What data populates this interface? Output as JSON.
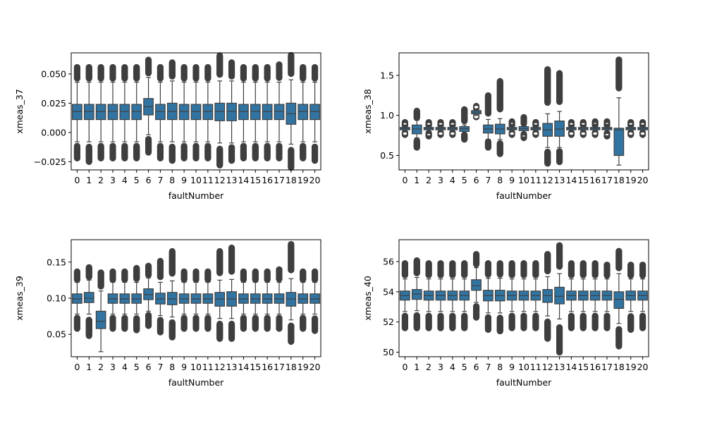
{
  "chart_data": [
    {
      "type": "box",
      "xlabel": "faultNumber",
      "ylabel": "xmeas_37",
      "categories": [
        "0",
        "1",
        "2",
        "3",
        "4",
        "5",
        "6",
        "7",
        "8",
        "9",
        "10",
        "11",
        "12",
        "13",
        "14",
        "15",
        "16",
        "17",
        "18",
        "19",
        "20"
      ],
      "ylim": [
        -0.032,
        0.068
      ],
      "yticks": [
        -0.025,
        0.0,
        0.025,
        0.05
      ],
      "ytick_labels": [
        "−0.025",
        "0.000",
        "0.025",
        "0.050"
      ],
      "box_color": "#3274a1",
      "boxes": [
        {
          "q1": 0.011,
          "median": 0.018,
          "q3": 0.024,
          "wlo": -0.008,
          "whi": 0.043,
          "flo": -0.022,
          "fhi": 0.056
        },
        {
          "q1": 0.011,
          "median": 0.018,
          "q3": 0.024,
          "wlo": -0.008,
          "whi": 0.043,
          "flo": -0.025,
          "fhi": 0.056
        },
        {
          "q1": 0.011,
          "median": 0.018,
          "q3": 0.024,
          "wlo": -0.008,
          "whi": 0.043,
          "flo": -0.022,
          "fhi": 0.056
        },
        {
          "q1": 0.011,
          "median": 0.018,
          "q3": 0.024,
          "wlo": -0.008,
          "whi": 0.043,
          "flo": -0.022,
          "fhi": 0.056
        },
        {
          "q1": 0.011,
          "median": 0.018,
          "q3": 0.024,
          "wlo": -0.008,
          "whi": 0.043,
          "flo": -0.022,
          "fhi": 0.056
        },
        {
          "q1": 0.011,
          "median": 0.018,
          "q3": 0.024,
          "wlo": -0.008,
          "whi": 0.043,
          "flo": -0.022,
          "fhi": 0.056
        },
        {
          "q1": 0.015,
          "median": 0.022,
          "q3": 0.029,
          "wlo": -0.002,
          "whi": 0.047,
          "flo": -0.017,
          "fhi": 0.062
        },
        {
          "q1": 0.011,
          "median": 0.018,
          "q3": 0.024,
          "wlo": -0.008,
          "whi": 0.043,
          "flo": -0.022,
          "fhi": 0.056
        },
        {
          "q1": 0.011,
          "median": 0.018,
          "q3": 0.025,
          "wlo": -0.008,
          "whi": 0.044,
          "flo": -0.024,
          "fhi": 0.06
        },
        {
          "q1": 0.011,
          "median": 0.018,
          "q3": 0.024,
          "wlo": -0.008,
          "whi": 0.043,
          "flo": -0.022,
          "fhi": 0.056
        },
        {
          "q1": 0.011,
          "median": 0.018,
          "q3": 0.024,
          "wlo": -0.008,
          "whi": 0.043,
          "flo": -0.022,
          "fhi": 0.056
        },
        {
          "q1": 0.011,
          "median": 0.018,
          "q3": 0.024,
          "wlo": -0.008,
          "whi": 0.043,
          "flo": -0.022,
          "fhi": 0.056
        },
        {
          "q1": 0.01,
          "median": 0.018,
          "q3": 0.025,
          "wlo": -0.009,
          "whi": 0.044,
          "flo": -0.028,
          "fhi": 0.066
        },
        {
          "q1": 0.01,
          "median": 0.018,
          "q3": 0.025,
          "wlo": -0.009,
          "whi": 0.044,
          "flo": -0.024,
          "fhi": 0.06
        },
        {
          "q1": 0.011,
          "median": 0.018,
          "q3": 0.024,
          "wlo": -0.008,
          "whi": 0.043,
          "flo": -0.022,
          "fhi": 0.056
        },
        {
          "q1": 0.011,
          "median": 0.018,
          "q3": 0.024,
          "wlo": -0.008,
          "whi": 0.043,
          "flo": -0.022,
          "fhi": 0.056
        },
        {
          "q1": 0.011,
          "median": 0.018,
          "q3": 0.024,
          "wlo": -0.008,
          "whi": 0.043,
          "flo": -0.022,
          "fhi": 0.056
        },
        {
          "q1": 0.011,
          "median": 0.018,
          "q3": 0.024,
          "wlo": -0.008,
          "whi": 0.043,
          "flo": -0.022,
          "fhi": 0.058
        },
        {
          "q1": 0.007,
          "median": 0.016,
          "q3": 0.025,
          "wlo": -0.01,
          "whi": 0.045,
          "flo": -0.03,
          "fhi": 0.066
        },
        {
          "q1": 0.011,
          "median": 0.018,
          "q3": 0.024,
          "wlo": -0.008,
          "whi": 0.043,
          "flo": -0.022,
          "fhi": 0.056
        },
        {
          "q1": 0.011,
          "median": 0.018,
          "q3": 0.024,
          "wlo": -0.008,
          "whi": 0.043,
          "flo": -0.024,
          "fhi": 0.056
        }
      ]
    },
    {
      "type": "box",
      "xlabel": "faultNumber",
      "ylabel": "xmeas_38",
      "categories": [
        "0",
        "1",
        "2",
        "3",
        "4",
        "5",
        "6",
        "7",
        "8",
        "9",
        "10",
        "11",
        "12",
        "13",
        "14",
        "15",
        "16",
        "17",
        "18",
        "19",
        "20"
      ],
      "ylim": [
        0.32,
        1.78
      ],
      "yticks": [
        0.5,
        1.0,
        1.5
      ],
      "ytick_labels": [
        "0.5",
        "1.0",
        "1.5"
      ],
      "box_color": "#3274a1",
      "boxes": [
        {
          "q1": 0.82,
          "median": 0.835,
          "q3": 0.85,
          "wlo": 0.8,
          "whi": 0.86,
          "flo": 0.76,
          "fhi": 0.92
        },
        {
          "q1": 0.77,
          "median": 0.83,
          "q3": 0.88,
          "wlo": 0.72,
          "whi": 0.94,
          "flo": 0.6,
          "fhi": 1.06
        },
        {
          "q1": 0.82,
          "median": 0.835,
          "q3": 0.85,
          "wlo": 0.8,
          "whi": 0.86,
          "flo": 0.74,
          "fhi": 0.92
        },
        {
          "q1": 0.82,
          "median": 0.835,
          "q3": 0.85,
          "wlo": 0.8,
          "whi": 0.86,
          "flo": 0.76,
          "fhi": 0.92
        },
        {
          "q1": 0.82,
          "median": 0.835,
          "q3": 0.85,
          "wlo": 0.8,
          "whi": 0.86,
          "flo": 0.76,
          "fhi": 0.92
        },
        {
          "q1": 0.8,
          "median": 0.835,
          "q3": 0.86,
          "wlo": 0.78,
          "whi": 0.88,
          "flo": 0.7,
          "fhi": 1.08
        },
        {
          "q1": 1.02,
          "median": 1.04,
          "q3": 1.06,
          "wlo": 1.0,
          "whi": 1.08,
          "flo": 0.98,
          "fhi": 1.12
        },
        {
          "q1": 0.78,
          "median": 0.83,
          "q3": 0.88,
          "wlo": 0.7,
          "whi": 0.95,
          "flo": 0.6,
          "fhi": 1.25
        },
        {
          "q1": 0.77,
          "median": 0.83,
          "q3": 0.89,
          "wlo": 0.7,
          "whi": 0.96,
          "flo": 0.52,
          "fhi": 1.43
        },
        {
          "q1": 0.82,
          "median": 0.835,
          "q3": 0.85,
          "wlo": 0.8,
          "whi": 0.86,
          "flo": 0.76,
          "fhi": 0.93
        },
        {
          "q1": 0.81,
          "median": 0.835,
          "q3": 0.86,
          "wlo": 0.79,
          "whi": 0.87,
          "flo": 0.72,
          "fhi": 0.98
        },
        {
          "q1": 0.82,
          "median": 0.835,
          "q3": 0.85,
          "wlo": 0.8,
          "whi": 0.86,
          "flo": 0.76,
          "fhi": 0.92
        },
        {
          "q1": 0.74,
          "median": 0.82,
          "q3": 0.9,
          "wlo": 0.6,
          "whi": 1.02,
          "flo": 0.4,
          "fhi": 1.58
        },
        {
          "q1": 0.74,
          "median": 0.83,
          "q3": 0.93,
          "wlo": 0.6,
          "whi": 1.05,
          "flo": 0.42,
          "fhi": 1.53
        },
        {
          "q1": 0.82,
          "median": 0.835,
          "q3": 0.85,
          "wlo": 0.8,
          "whi": 0.86,
          "flo": 0.76,
          "fhi": 0.92
        },
        {
          "q1": 0.82,
          "median": 0.835,
          "q3": 0.85,
          "wlo": 0.8,
          "whi": 0.86,
          "flo": 0.76,
          "fhi": 0.92
        },
        {
          "q1": 0.82,
          "median": 0.835,
          "q3": 0.85,
          "wlo": 0.8,
          "whi": 0.86,
          "flo": 0.76,
          "fhi": 0.93
        },
        {
          "q1": 0.82,
          "median": 0.835,
          "q3": 0.85,
          "wlo": 0.8,
          "whi": 0.86,
          "flo": 0.74,
          "fhi": 0.93
        },
        {
          "q1": 0.5,
          "median": 0.82,
          "q3": 0.84,
          "wlo": 0.38,
          "whi": 1.22,
          "flo": 0.38,
          "fhi": 1.7
        },
        {
          "q1": 0.82,
          "median": 0.835,
          "q3": 0.85,
          "wlo": 0.8,
          "whi": 0.86,
          "flo": 0.76,
          "fhi": 0.92
        },
        {
          "q1": 0.82,
          "median": 0.835,
          "q3": 0.85,
          "wlo": 0.8,
          "whi": 0.86,
          "flo": 0.76,
          "fhi": 0.92
        }
      ]
    },
    {
      "type": "box",
      "xlabel": "faultNumber",
      "ylabel": "xmeas_39",
      "categories": [
        "0",
        "1",
        "2",
        "3",
        "4",
        "5",
        "6",
        "7",
        "8",
        "9",
        "10",
        "11",
        "12",
        "13",
        "14",
        "15",
        "16",
        "17",
        "18",
        "19",
        "20"
      ],
      "ylim": [
        0.019,
        0.181
      ],
      "yticks": [
        0.05,
        0.1,
        0.15
      ],
      "ytick_labels": [
        "0.05",
        "0.10",
        "0.15"
      ],
      "box_color": "#3274a1",
      "boxes": [
        {
          "q1": 0.093,
          "median": 0.099,
          "q3": 0.106,
          "wlo": 0.078,
          "whi": 0.122,
          "flo": 0.058,
          "fhi": 0.137
        },
        {
          "q1": 0.094,
          "median": 0.1,
          "q3": 0.108,
          "wlo": 0.078,
          "whi": 0.125,
          "flo": 0.048,
          "fhi": 0.143
        },
        {
          "q1": 0.058,
          "median": 0.068,
          "q3": 0.082,
          "wlo": 0.026,
          "whi": 0.11,
          "flo": 0.026,
          "fhi": 0.136
        },
        {
          "q1": 0.093,
          "median": 0.099,
          "q3": 0.106,
          "wlo": 0.078,
          "whi": 0.122,
          "flo": 0.058,
          "fhi": 0.137
        },
        {
          "q1": 0.093,
          "median": 0.099,
          "q3": 0.106,
          "wlo": 0.078,
          "whi": 0.122,
          "flo": 0.058,
          "fhi": 0.137
        },
        {
          "q1": 0.093,
          "median": 0.099,
          "q3": 0.106,
          "wlo": 0.078,
          "whi": 0.122,
          "flo": 0.056,
          "fhi": 0.142
        },
        {
          "q1": 0.098,
          "median": 0.105,
          "q3": 0.113,
          "wlo": 0.082,
          "whi": 0.128,
          "flo": 0.062,
          "fhi": 0.145
        },
        {
          "q1": 0.092,
          "median": 0.099,
          "q3": 0.107,
          "wlo": 0.076,
          "whi": 0.122,
          "flo": 0.053,
          "fhi": 0.152
        },
        {
          "q1": 0.091,
          "median": 0.099,
          "q3": 0.108,
          "wlo": 0.074,
          "whi": 0.124,
          "flo": 0.046,
          "fhi": 0.165
        },
        {
          "q1": 0.093,
          "median": 0.099,
          "q3": 0.106,
          "wlo": 0.078,
          "whi": 0.122,
          "flo": 0.058,
          "fhi": 0.137
        },
        {
          "q1": 0.093,
          "median": 0.099,
          "q3": 0.106,
          "wlo": 0.078,
          "whi": 0.122,
          "flo": 0.058,
          "fhi": 0.137
        },
        {
          "q1": 0.093,
          "median": 0.099,
          "q3": 0.106,
          "wlo": 0.078,
          "whi": 0.122,
          "flo": 0.058,
          "fhi": 0.137
        },
        {
          "q1": 0.089,
          "median": 0.099,
          "q3": 0.108,
          "wlo": 0.072,
          "whi": 0.125,
          "flo": 0.044,
          "fhi": 0.165
        },
        {
          "q1": 0.089,
          "median": 0.099,
          "q3": 0.109,
          "wlo": 0.072,
          "whi": 0.126,
          "flo": 0.044,
          "fhi": 0.17
        },
        {
          "q1": 0.093,
          "median": 0.099,
          "q3": 0.106,
          "wlo": 0.078,
          "whi": 0.122,
          "flo": 0.058,
          "fhi": 0.137
        },
        {
          "q1": 0.093,
          "median": 0.099,
          "q3": 0.106,
          "wlo": 0.078,
          "whi": 0.122,
          "flo": 0.058,
          "fhi": 0.137
        },
        {
          "q1": 0.093,
          "median": 0.099,
          "q3": 0.106,
          "wlo": 0.078,
          "whi": 0.122,
          "flo": 0.058,
          "fhi": 0.137
        },
        {
          "q1": 0.093,
          "median": 0.099,
          "q3": 0.106,
          "wlo": 0.078,
          "whi": 0.122,
          "flo": 0.058,
          "fhi": 0.14
        },
        {
          "q1": 0.089,
          "median": 0.099,
          "q3": 0.108,
          "wlo": 0.07,
          "whi": 0.127,
          "flo": 0.04,
          "fhi": 0.175
        },
        {
          "q1": 0.093,
          "median": 0.099,
          "q3": 0.106,
          "wlo": 0.078,
          "whi": 0.122,
          "flo": 0.058,
          "fhi": 0.137
        },
        {
          "q1": 0.093,
          "median": 0.099,
          "q3": 0.106,
          "wlo": 0.078,
          "whi": 0.122,
          "flo": 0.055,
          "fhi": 0.137
        }
      ]
    },
    {
      "type": "box",
      "xlabel": "faultNumber",
      "ylabel": "xmeas_40",
      "categories": [
        "0",
        "1",
        "2",
        "3",
        "4",
        "5",
        "6",
        "7",
        "8",
        "9",
        "10",
        "11",
        "12",
        "13",
        "14",
        "15",
        "16",
        "17",
        "18",
        "19",
        "20"
      ],
      "ylim": [
        49.7,
        57.45
      ],
      "yticks": [
        50,
        52,
        54,
        56
      ],
      "ytick_labels": [
        "50",
        "52",
        "54",
        "56"
      ],
      "box_color": "#3274a1",
      "boxes": [
        {
          "q1": 53.45,
          "median": 53.75,
          "q3": 54.05,
          "wlo": 52.7,
          "whi": 54.85,
          "flo": 51.6,
          "fhi": 55.9
        },
        {
          "q1": 53.5,
          "median": 53.85,
          "q3": 54.15,
          "wlo": 52.75,
          "whi": 54.95,
          "flo": 51.6,
          "fhi": 56.1
        },
        {
          "q1": 53.45,
          "median": 53.75,
          "q3": 54.05,
          "wlo": 52.7,
          "whi": 54.85,
          "flo": 51.6,
          "fhi": 55.9
        },
        {
          "q1": 53.45,
          "median": 53.75,
          "q3": 54.05,
          "wlo": 52.7,
          "whi": 54.85,
          "flo": 51.6,
          "fhi": 55.9
        },
        {
          "q1": 53.45,
          "median": 53.75,
          "q3": 54.05,
          "wlo": 52.7,
          "whi": 54.85,
          "flo": 51.6,
          "fhi": 55.9
        },
        {
          "q1": 53.45,
          "median": 53.75,
          "q3": 54.05,
          "wlo": 52.7,
          "whi": 54.85,
          "flo": 51.6,
          "fhi": 55.9
        },
        {
          "q1": 54.1,
          "median": 54.4,
          "q3": 54.8,
          "wlo": 53.3,
          "whi": 55.6,
          "flo": 52.3,
          "fhi": 56.5
        },
        {
          "q1": 53.4,
          "median": 53.75,
          "q3": 54.1,
          "wlo": 52.6,
          "whi": 54.9,
          "flo": 51.5,
          "fhi": 55.9
        },
        {
          "q1": 53.4,
          "median": 53.75,
          "q3": 54.1,
          "wlo": 52.6,
          "whi": 54.9,
          "flo": 51.4,
          "fhi": 55.9
        },
        {
          "q1": 53.45,
          "median": 53.75,
          "q3": 54.05,
          "wlo": 52.7,
          "whi": 54.85,
          "flo": 51.6,
          "fhi": 55.9
        },
        {
          "q1": 53.45,
          "median": 53.75,
          "q3": 54.05,
          "wlo": 52.7,
          "whi": 54.85,
          "flo": 51.6,
          "fhi": 55.9
        },
        {
          "q1": 53.45,
          "median": 53.75,
          "q3": 54.05,
          "wlo": 52.7,
          "whi": 54.85,
          "flo": 51.6,
          "fhi": 55.9
        },
        {
          "q1": 53.3,
          "median": 53.75,
          "q3": 54.15,
          "wlo": 52.4,
          "whi": 55.0,
          "flo": 50.9,
          "fhi": 56.5
        },
        {
          "q1": 53.2,
          "median": 53.7,
          "q3": 54.3,
          "wlo": 52.2,
          "whi": 55.2,
          "flo": 50.0,
          "fhi": 57.1
        },
        {
          "q1": 53.45,
          "median": 53.75,
          "q3": 54.05,
          "wlo": 52.7,
          "whi": 54.85,
          "flo": 51.6,
          "fhi": 55.9
        },
        {
          "q1": 53.45,
          "median": 53.75,
          "q3": 54.05,
          "wlo": 52.7,
          "whi": 54.85,
          "flo": 51.6,
          "fhi": 55.9
        },
        {
          "q1": 53.45,
          "median": 53.75,
          "q3": 54.05,
          "wlo": 52.7,
          "whi": 54.85,
          "flo": 51.6,
          "fhi": 55.9
        },
        {
          "q1": 53.45,
          "median": 53.75,
          "q3": 54.05,
          "wlo": 52.7,
          "whi": 54.85,
          "flo": 51.6,
          "fhi": 55.8
        },
        {
          "q1": 52.9,
          "median": 53.5,
          "q3": 54.0,
          "wlo": 51.9,
          "whi": 55.2,
          "flo": 50.4,
          "fhi": 56.7
        },
        {
          "q1": 53.45,
          "median": 53.75,
          "q3": 54.05,
          "wlo": 52.7,
          "whi": 54.85,
          "flo": 51.5,
          "fhi": 55.8
        },
        {
          "q1": 53.45,
          "median": 53.75,
          "q3": 54.05,
          "wlo": 52.7,
          "whi": 54.85,
          "flo": 51.6,
          "fhi": 55.8
        }
      ]
    }
  ]
}
